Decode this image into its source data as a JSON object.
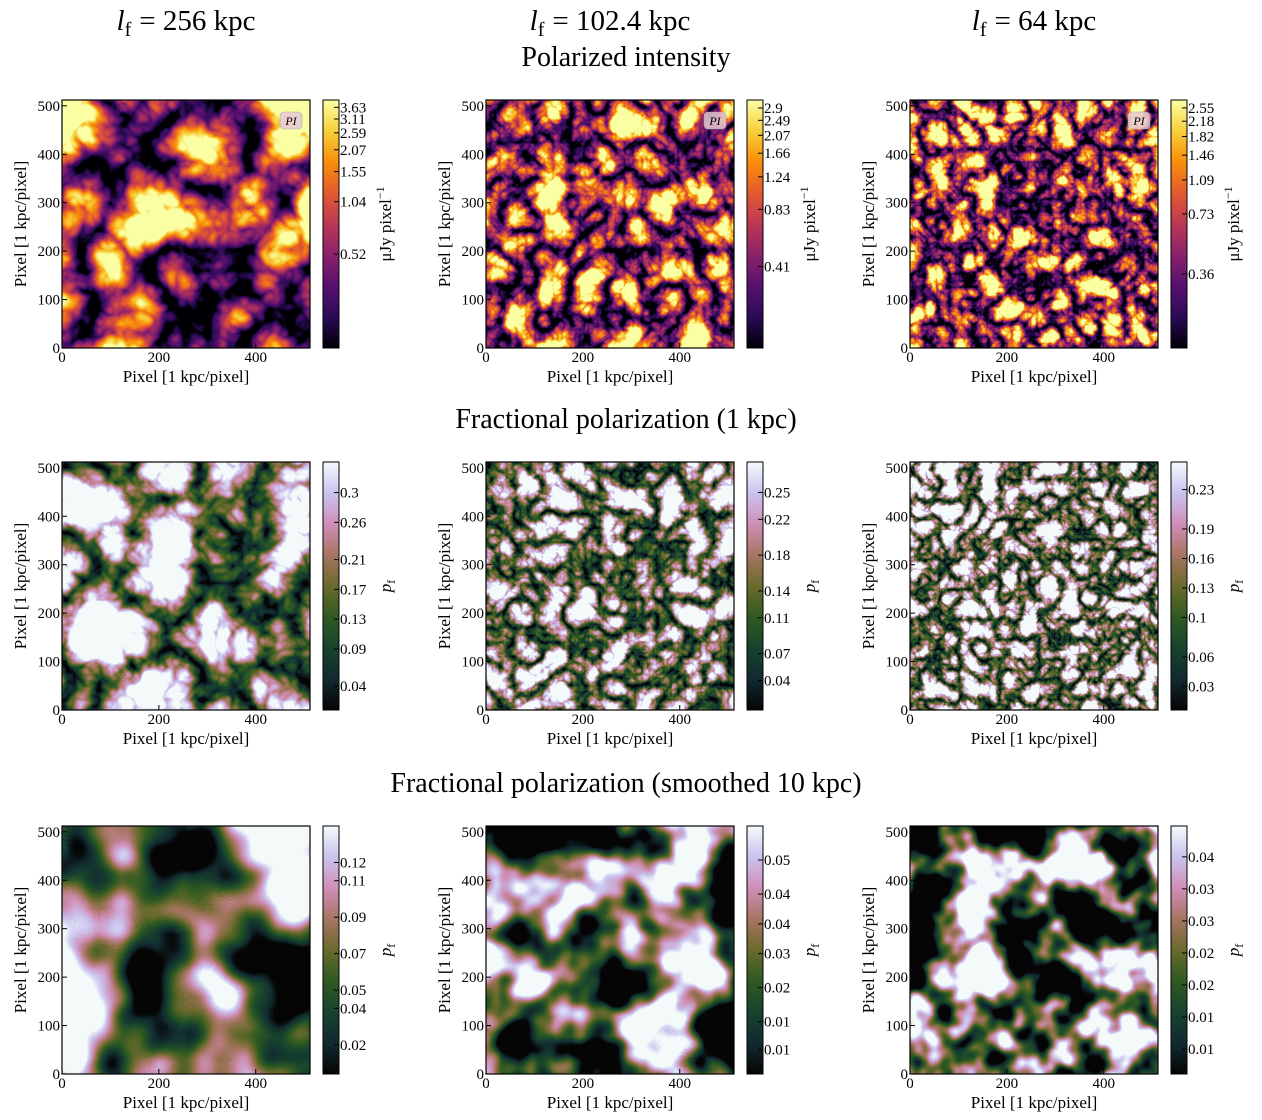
{
  "column_headers": [
    {
      "symbol": "l",
      "subscript": "f",
      "text": "= 256 kpc"
    },
    {
      "symbol": "l",
      "subscript": "f",
      "text": "= 102.4 kpc"
    },
    {
      "symbol": "l",
      "subscript": "f",
      "text": "= 64 kpc"
    }
  ],
  "row_titles": [
    "Polarized intensity",
    "Fractional polarization (1 kpc)",
    "Fractional polarization (smoothed 10 kpc)"
  ],
  "chart_data": [
    {
      "type": "heatmap",
      "xlabel": "Pixel [1 kpc/pixel]",
      "ylabel": "Pixel [1 kpc/pixel]",
      "xlim": [
        0,
        512
      ],
      "ylim": [
        0,
        512
      ],
      "xticks": [
        0,
        200,
        400
      ],
      "yticks": [
        0,
        100,
        200,
        300,
        400,
        500
      ],
      "colormap": "inferno",
      "annotation": "PI",
      "colorbar": {
        "label": {
          "text": "μJy pixel",
          "superscript": "−1"
        },
        "scale": "log",
        "lim": [
          0.15,
          4.0
        ],
        "ticks": [
          0.52,
          1.04,
          1.55,
          2.07,
          2.59,
          3.11,
          3.63
        ]
      }
    },
    {
      "type": "heatmap",
      "xlabel": "Pixel [1 kpc/pixel]",
      "ylabel": "Pixel [1 kpc/pixel]",
      "xlim": [
        0,
        512
      ],
      "ylim": [
        0,
        512
      ],
      "xticks": [
        0,
        200,
        400
      ],
      "yticks": [
        0,
        100,
        200,
        300,
        400,
        500
      ],
      "colormap": "inferno",
      "annotation": "PI",
      "colorbar": {
        "label": {
          "text": "μJy pixel",
          "superscript": "−1"
        },
        "scale": "log",
        "lim": [
          0.15,
          3.2
        ],
        "ticks": [
          0.41,
          0.83,
          1.24,
          1.66,
          2.07,
          2.49,
          2.9
        ]
      }
    },
    {
      "type": "heatmap",
      "xlabel": "Pixel [1 kpc/pixel]",
      "ylabel": "Pixel [1 kpc/pixel]",
      "xlim": [
        0,
        512
      ],
      "ylim": [
        0,
        512
      ],
      "xticks": [
        0,
        200,
        400
      ],
      "yticks": [
        0,
        100,
        200,
        300,
        400,
        500
      ],
      "colormap": "inferno",
      "annotation": "PI",
      "colorbar": {
        "label": {
          "text": "μJy pixel",
          "superscript": "−1"
        },
        "scale": "log",
        "lim": [
          0.15,
          2.8
        ],
        "ticks": [
          0.36,
          0.73,
          1.09,
          1.46,
          1.82,
          2.18,
          2.55
        ]
      }
    },
    {
      "type": "heatmap",
      "xlabel": "Pixel [1 kpc/pixel]",
      "ylabel": "Pixel [1 kpc/pixel]",
      "xlim": [
        0,
        512
      ],
      "ylim": [
        0,
        512
      ],
      "xticks": [
        0,
        200,
        400
      ],
      "yticks": [
        0,
        100,
        200,
        300,
        400,
        500
      ],
      "colormap": "cubehelix",
      "colorbar": {
        "label": {
          "symbol": "p",
          "subscript": "f"
        },
        "scale": "linear",
        "lim": [
          0.008,
          0.341
        ],
        "ticks": [
          0.04,
          0.09,
          0.13,
          0.17,
          0.21,
          0.26,
          0.3
        ]
      }
    },
    {
      "type": "heatmap",
      "xlabel": "Pixel [1 kpc/pixel]",
      "ylabel": "Pixel [1 kpc/pixel]",
      "xlim": [
        0,
        512
      ],
      "ylim": [
        0,
        512
      ],
      "xticks": [
        0,
        200,
        400
      ],
      "yticks": [
        0,
        100,
        200,
        300,
        400,
        500
      ],
      "colormap": "cubehelix",
      "colorbar": {
        "label": {
          "symbol": "p",
          "subscript": "f"
        },
        "scale": "linear",
        "lim": [
          0.007,
          0.284
        ],
        "ticks": [
          0.04,
          0.07,
          0.11,
          0.14,
          0.18,
          0.22,
          0.25
        ]
      }
    },
    {
      "type": "heatmap",
      "xlabel": "Pixel [1 kpc/pixel]",
      "ylabel": "Pixel [1 kpc/pixel]",
      "xlim": [
        0,
        512
      ],
      "ylim": [
        0,
        512
      ],
      "xticks": [
        0,
        200,
        400
      ],
      "yticks": [
        0,
        100,
        200,
        300,
        400,
        500
      ],
      "colormap": "cubehelix",
      "colorbar": {
        "label": {
          "symbol": "p",
          "subscript": "f"
        },
        "scale": "linear",
        "lim": [
          0.006,
          0.258
        ],
        "ticks": [
          0.03,
          0.06,
          0.1,
          0.13,
          0.16,
          0.19,
          0.23
        ]
      }
    },
    {
      "type": "heatmap",
      "xlabel": "Pixel [1 kpc/pixel]",
      "ylabel": "Pixel [1 kpc/pixel]",
      "xlim": [
        0,
        512
      ],
      "ylim": [
        0,
        512
      ],
      "xticks": [
        0,
        200,
        400
      ],
      "yticks": [
        0,
        100,
        200,
        300,
        400,
        500
      ],
      "colormap": "cubehelix",
      "colorbar": {
        "label": {
          "symbol": "p",
          "subscript": "f"
        },
        "scale": "linear",
        "lim": [
          0.004,
          0.14
        ],
        "ticks": [
          0.02,
          0.04,
          0.05,
          0.07,
          0.09,
          0.11,
          0.12
        ]
      }
    },
    {
      "type": "heatmap",
      "xlabel": "Pixel [1 kpc/pixel]",
      "ylabel": "Pixel [1 kpc/pixel]",
      "xlim": [
        0,
        512
      ],
      "ylim": [
        0,
        512
      ],
      "xticks": [
        0,
        200,
        400
      ],
      "yticks": [
        0,
        100,
        200,
        300,
        400,
        500
      ],
      "colormap": "cubehelix",
      "colorbar": {
        "label": {
          "symbol": "p",
          "subscript": "f"
        },
        "scale": "linear",
        "lim": [
          0.0017,
          0.06
        ],
        "ticks": [
          {
            "value": 0.0075,
            "label": "0.01"
          },
          {
            "value": 0.014,
            "label": "0.01"
          },
          {
            "value": 0.022,
            "label": "0.02"
          },
          0.03,
          {
            "value": 0.037,
            "label": "0.04"
          },
          {
            "value": 0.044,
            "label": "0.04"
          },
          {
            "value": 0.052,
            "label": "0.05"
          }
        ]
      }
    },
    {
      "type": "heatmap",
      "xlabel": "Pixel [1 kpc/pixel]",
      "ylabel": "Pixel [1 kpc/pixel]",
      "xlim": [
        0,
        512
      ],
      "ylim": [
        0,
        512
      ],
      "xticks": [
        0,
        200,
        400
      ],
      "yticks": [
        0,
        100,
        200,
        300,
        400,
        500
      ],
      "colormap": "cubehelix",
      "colorbar": {
        "label": {
          "symbol": "p",
          "subscript": "f"
        },
        "scale": "linear",
        "lim": [
          0.0012,
          0.0438
        ],
        "ticks": [
          {
            "value": 0.0055,
            "label": "0.01"
          },
          {
            "value": 0.011,
            "label": "0.01"
          },
          {
            "value": 0.0165,
            "label": "0.02"
          },
          {
            "value": 0.022,
            "label": "0.02"
          },
          {
            "value": 0.0275,
            "label": "0.03"
          },
          {
            "value": 0.033,
            "label": "0.03"
          },
          {
            "value": 0.0385,
            "label": "0.04"
          }
        ]
      }
    }
  ]
}
